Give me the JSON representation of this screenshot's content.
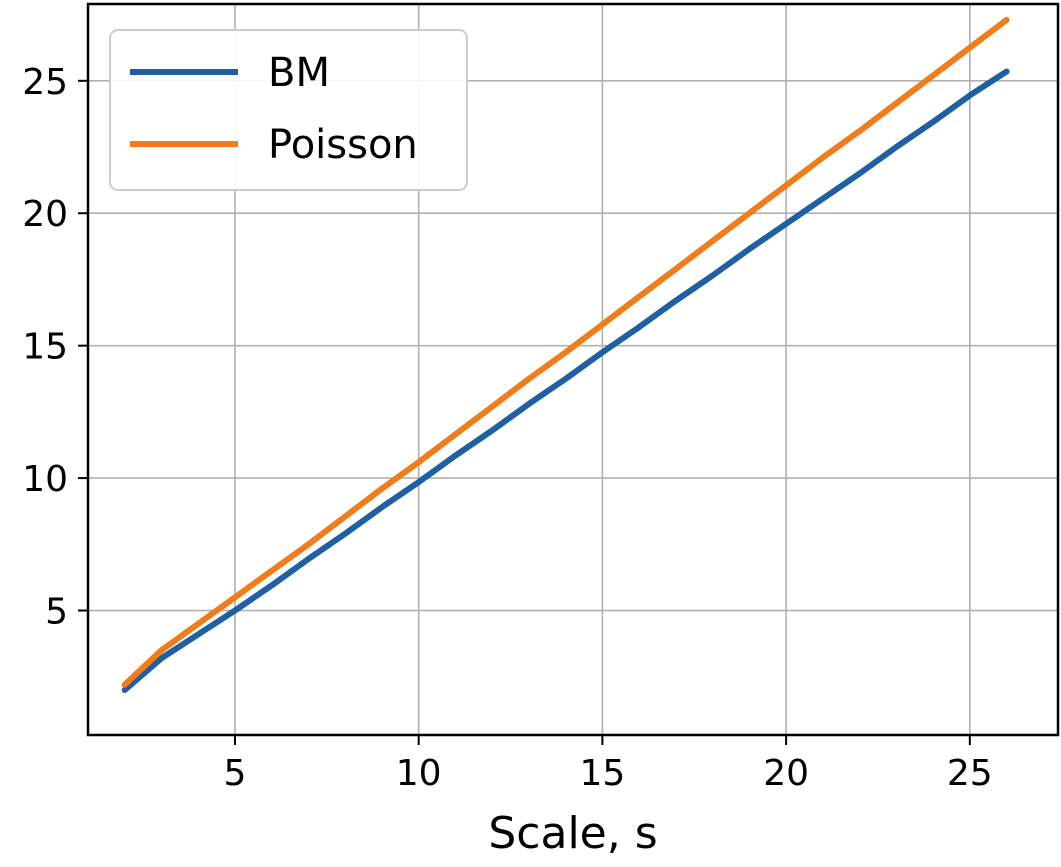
{
  "chart_data": {
    "type": "line",
    "title": "",
    "xlabel": "Scale, s",
    "ylabel": "",
    "xlim": [
      1.0,
      27.4
    ],
    "ylim": [
      0.3,
      27.9
    ],
    "xticks": [
      5,
      10,
      15,
      20,
      25
    ],
    "yticks": [
      5,
      10,
      15,
      20,
      25
    ],
    "grid": true,
    "legend_position": "upper-left",
    "series": [
      {
        "name": "BM",
        "color": "#1f5fa3",
        "x": [
          2,
          3,
          4,
          5,
          6,
          7,
          8,
          9,
          10,
          11,
          12,
          13,
          14,
          15,
          16,
          17,
          18,
          19,
          20,
          21,
          22,
          23,
          24,
          25,
          26
        ],
        "y": [
          2.0,
          3.2,
          4.1,
          5.0,
          5.95,
          6.95,
          7.9,
          8.9,
          9.85,
          10.85,
          11.8,
          12.8,
          13.75,
          14.75,
          15.7,
          16.7,
          17.65,
          18.65,
          19.6,
          20.55,
          21.5,
          22.5,
          23.45,
          24.45,
          25.35
        ]
      },
      {
        "name": "Poisson",
        "color": "#f07c1a",
        "x": [
          2,
          3,
          4,
          5,
          6,
          7,
          8,
          9,
          10,
          11,
          12,
          13,
          14,
          15,
          16,
          17,
          18,
          19,
          20,
          21,
          22,
          23,
          24,
          25,
          26
        ],
        "y": [
          2.2,
          3.5,
          4.5,
          5.5,
          6.5,
          7.5,
          8.55,
          9.6,
          10.6,
          11.65,
          12.7,
          13.75,
          14.75,
          15.8,
          16.85,
          17.9,
          18.95,
          20.0,
          21.05,
          22.1,
          23.1,
          24.15,
          25.2,
          26.25,
          27.3
        ]
      }
    ]
  }
}
